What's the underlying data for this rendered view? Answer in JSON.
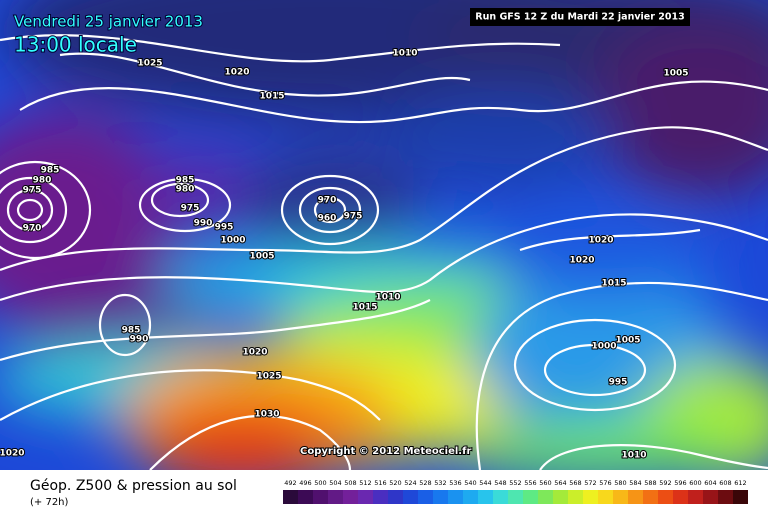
{
  "header": {
    "date": "Vendredi 25 janvier 2013",
    "time": "13:00 locale",
    "run": "Run GFS 12 Z du Mardi 22 janvier 2013"
  },
  "copyright": "Copyright © 2012 Meteociel.fr",
  "footer": {
    "title": "Géop. Z500 & pression au sol",
    "subtitle": "(+ 72h)"
  },
  "legend": {
    "values": [
      492,
      496,
      500,
      504,
      508,
      512,
      516,
      520,
      524,
      528,
      532,
      536,
      540,
      544,
      548,
      552,
      556,
      560,
      564,
      568,
      572,
      576,
      580,
      584,
      588,
      592,
      596,
      600,
      604,
      608,
      612
    ],
    "colors": [
      "#2a0a3a",
      "#3c0a55",
      "#50106e",
      "#621a86",
      "#73209a",
      "#6a28b0",
      "#4a2ec0",
      "#2f36c8",
      "#1f48d8",
      "#1a5fe6",
      "#1878ee",
      "#1a92f0",
      "#1eaaf0",
      "#28c4ec",
      "#3adbd8",
      "#4ee6b0",
      "#5eea84",
      "#7ee85a",
      "#a4ea3a",
      "#cbee2a",
      "#eef020",
      "#f8d81c",
      "#f8b818",
      "#f69416",
      "#f27014",
      "#ec4e14",
      "#dc3218",
      "#c0201c",
      "#981418",
      "#6c0c10",
      "#3a0608"
    ]
  },
  "isobar_labels": [
    1025,
    1020,
    1015,
    1010,
    1005,
    985,
    980,
    975,
    970,
    985,
    980,
    975,
    990,
    995,
    1000,
    970,
    975,
    960,
    1005,
    1010,
    1015,
    985,
    990,
    1020,
    1025,
    1030,
    1020,
    1020,
    1020,
    1015,
    1005,
    1000,
    995,
    1010
  ]
}
